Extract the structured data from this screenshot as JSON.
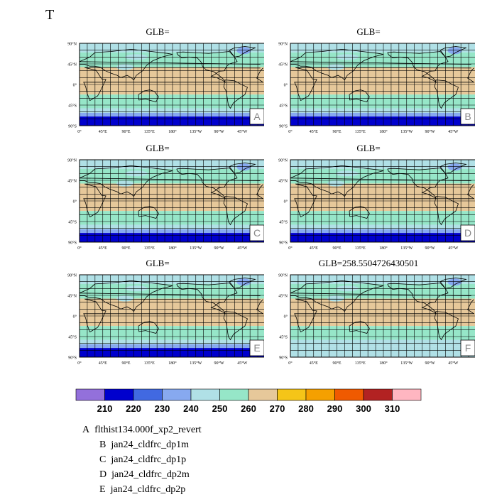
{
  "figure_title": "T",
  "panels": [
    {
      "id": "A",
      "title": "GLB=",
      "label": "A",
      "lat_ticks": [
        "90°N",
        "45°N",
        "0°",
        "45°S",
        "90°S"
      ],
      "lon_ticks": [
        "0°",
        "45°E",
        "90°E",
        "135°E",
        "180°",
        "135°W",
        "90°W",
        "45°W"
      ]
    },
    {
      "id": "B",
      "title": "GLB=",
      "label": "B",
      "lat_ticks": [
        "90°N",
        "45°N",
        "0°",
        "45°S",
        "90°S"
      ],
      "lon_ticks": [
        "0°",
        "45°E",
        "90°E",
        "135°E",
        "180°",
        "135°W",
        "90°W",
        "45°W"
      ]
    },
    {
      "id": "C",
      "title": "GLB=",
      "label": "C",
      "lat_ticks": [
        "90°N",
        "45°N",
        "0°",
        "45°S",
        "90°S"
      ],
      "lon_ticks": [
        "0°",
        "45°E",
        "90°E",
        "135°E",
        "180°",
        "135°W",
        "90°W",
        "45°W"
      ]
    },
    {
      "id": "D",
      "title": "GLB=",
      "label": "D",
      "lat_ticks": [
        "90°N",
        "45°N",
        "0°",
        "45°S",
        "90°S"
      ],
      "lon_ticks": [
        "0°",
        "45°E",
        "90°E",
        "135°E",
        "180°",
        "135°W",
        "90°W",
        "45°W"
      ]
    },
    {
      "id": "E",
      "title": "GLB=",
      "label": "E",
      "lat_ticks": [
        "90°N",
        "45°N",
        "0°",
        "45°S",
        "90°S"
      ],
      "lon_ticks": [
        "0°",
        "45°E",
        "90°E",
        "135°E",
        "180°",
        "135°W",
        "90°W",
        "45°W"
      ]
    },
    {
      "id": "F",
      "title": "GLB=258.5504726430501",
      "label": "F",
      "lat_ticks": [
        "90°N",
        "45°N",
        "0°",
        "45°S",
        "90°S"
      ],
      "lon_ticks": [
        "0°",
        "45°E",
        "90°E",
        "135°E",
        "180°",
        "135°W",
        "90°W",
        "45°W"
      ]
    }
  ],
  "colorbar": {
    "levels": [
      "210",
      "220",
      "230",
      "240",
      "250",
      "260",
      "270",
      "280",
      "290",
      "300",
      "310"
    ],
    "colors": [
      "#9370db",
      "#0000cd",
      "#4169e1",
      "#87a9f0",
      "#b0e0e6",
      "#96e6c8",
      "#e6c89a",
      "#f5c518",
      "#f5a000",
      "#f05a00",
      "#b22222",
      "#ffb6c1"
    ]
  },
  "chart_data": {
    "type": "heatmap",
    "title": "T",
    "panel_titles": [
      "GLB=",
      "GLB=",
      "GLB=",
      "GLB=",
      "GLB=",
      "GLB=258.5504726430501"
    ],
    "panel_labels": [
      "A",
      "B",
      "C",
      "D",
      "E",
      "F"
    ],
    "x_ticks": [
      "0°",
      "45°E",
      "90°E",
      "135°E",
      "180°",
      "135°W",
      "90°W",
      "45°W"
    ],
    "y_ticks": [
      "90°N",
      "45°N",
      "0°",
      "45°S",
      "90°S"
    ],
    "contour_levels": [
      210,
      220,
      230,
      240,
      250,
      260,
      270,
      280,
      290,
      300,
      310
    ],
    "approx_zonal_profile": [
      {
        "lat": 80,
        "value": 245
      },
      {
        "lat": 60,
        "value": 252
      },
      {
        "lat": 40,
        "value": 262
      },
      {
        "lat": 20,
        "value": 267
      },
      {
        "lat": 0,
        "value": 268
      },
      {
        "lat": -20,
        "value": 266
      },
      {
        "lat": -40,
        "value": 258
      },
      {
        "lat": -60,
        "value": 245
      },
      {
        "lat": -80,
        "value": 222
      }
    ]
  },
  "legend": [
    {
      "letter": "A",
      "name": "flthist134.000f_xp2_revert"
    },
    {
      "letter": "B",
      "name": "jan24_cldfrc_dp1m"
    },
    {
      "letter": "C",
      "name": "jan24_cldfrc_dp1p"
    },
    {
      "letter": "D",
      "name": "jan24_cldfrc_dp2m"
    },
    {
      "letter": "E",
      "name": "jan24_cldfrc_dp2p"
    }
  ]
}
